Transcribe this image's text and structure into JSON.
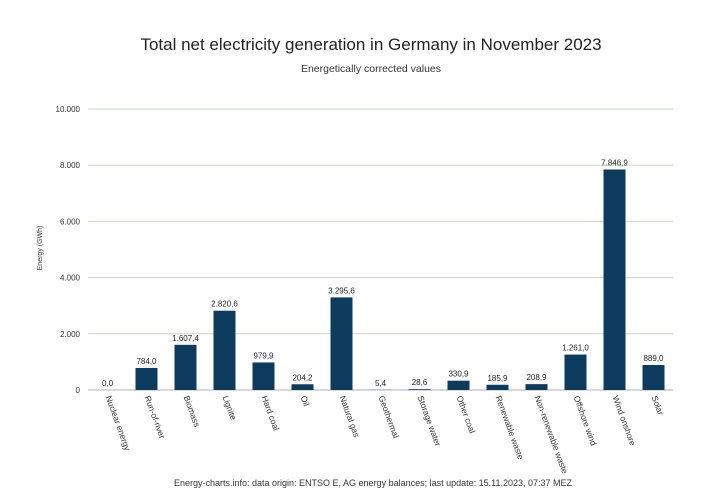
{
  "chart_data": {
    "type": "bar",
    "title": "Total net electricity generation in Germany in November 2023",
    "subtitle": "Energetically corrected values",
    "ylabel": "Energy (GWh)",
    "xlabel": "",
    "ylim": [
      0,
      10000
    ],
    "yticks": [
      0,
      2000,
      4000,
      6000,
      8000,
      10000
    ],
    "ytick_labels": [
      "0",
      "2.000",
      "4.000",
      "6.000",
      "8.000",
      "10.000"
    ],
    "grid": true,
    "legend": "none",
    "bar_color": "#0d3b5e",
    "categories": [
      "Nuclear energy",
      "Run-of-river",
      "Biomass",
      "Lignite",
      "Hard coal",
      "Oil",
      "Natural gas",
      "Geothermal",
      "Storage water",
      "Other coal",
      "Renewable waste",
      "Non-renewable waste",
      "Offshore wind",
      "Wind onshore",
      "Solar"
    ],
    "values": [
      0.0,
      784.0,
      1607.4,
      2820.6,
      979.9,
      204.2,
      3295.6,
      5.4,
      28.6,
      330.9,
      185.9,
      208.9,
      1261.0,
      7846.9,
      889.0
    ],
    "data_labels": [
      "0,0",
      "784,0",
      "1.607,4",
      "2.820,6",
      "979,9",
      "204,2",
      "3.295,6",
      "5,4",
      "28,6",
      "330,9",
      "185,9",
      "208,9",
      "1.261,0",
      "7.846,9",
      "889,0"
    ],
    "footer": "Energy-charts.info: data origin: ENTSO E, AG energy balances; last update: 15.11.2023, 07:37 MEZ"
  }
}
